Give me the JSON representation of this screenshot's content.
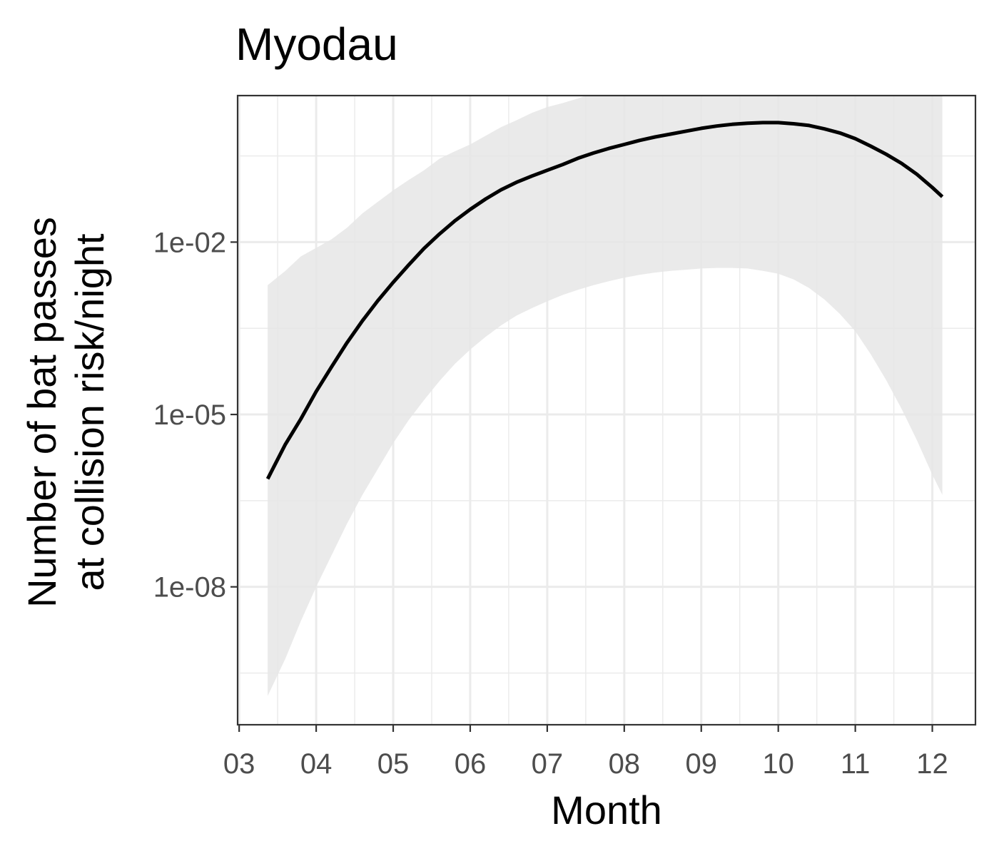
{
  "chart_data": {
    "type": "line",
    "title": "Myodau",
    "xlabel": "Month",
    "ylabel_lines": [
      "Number of bat passes",
      "at collision risk/night"
    ],
    "x_ticks": [
      "03",
      "04",
      "05",
      "06",
      "07",
      "08",
      "09",
      "10",
      "11",
      "12"
    ],
    "y_scale": "log10",
    "y_ticks": [
      {
        "label": "1e-08",
        "value": 1e-08
      },
      {
        "label": "1e-05",
        "value": 1e-05
      },
      {
        "label": "1e-02",
        "value": 0.01
      }
    ],
    "xlim_month": [
      2.98,
      12.56
    ],
    "ylim_log10": [
      -10.4,
      0.55
    ],
    "grid": true,
    "series": [
      {
        "color": "#000000",
        "x_month": [
          3.37,
          3.6,
          3.8,
          4.0,
          4.2,
          4.4,
          4.6,
          4.8,
          5.0,
          5.2,
          5.4,
          5.6,
          5.8,
          6.0,
          6.2,
          6.4,
          6.6,
          6.8,
          7.0,
          7.2,
          7.4,
          7.6,
          7.8,
          8.0,
          8.2,
          8.4,
          8.6,
          8.8,
          9.0,
          9.2,
          9.4,
          9.6,
          9.8,
          10.0,
          10.2,
          10.4,
          10.6,
          10.8,
          11.0,
          11.2,
          11.4,
          11.6,
          11.8,
          12.0,
          12.13
        ],
        "log10_y": [
          -6.12,
          -5.52,
          -5.08,
          -4.6,
          -4.17,
          -3.75,
          -3.37,
          -3.02,
          -2.7,
          -2.4,
          -2.11,
          -1.86,
          -1.63,
          -1.43,
          -1.25,
          -1.09,
          -0.96,
          -0.85,
          -0.75,
          -0.65,
          -0.54,
          -0.45,
          -0.37,
          -0.3,
          -0.23,
          -0.17,
          -0.12,
          -0.07,
          -0.02,
          0.02,
          0.05,
          0.07,
          0.08,
          0.08,
          0.06,
          0.03,
          -0.03,
          -0.1,
          -0.2,
          -0.33,
          -0.47,
          -0.63,
          -0.82,
          -1.05,
          -1.21
        ]
      }
    ],
    "ribbon": {
      "color": "#e6e6e6",
      "x_month": [
        3.37,
        3.6,
        3.8,
        4.0,
        4.2,
        4.4,
        4.6,
        4.8,
        5.0,
        5.2,
        5.4,
        5.6,
        5.8,
        6.0,
        6.2,
        6.4,
        6.6,
        6.8,
        7.0,
        7.2,
        7.4,
        7.6,
        7.8,
        8.0,
        8.2,
        8.4,
        8.6,
        8.8,
        9.0,
        9.2,
        9.4,
        9.6,
        9.8,
        10.0,
        10.2,
        10.4,
        10.6,
        10.8,
        11.0,
        11.2,
        11.4,
        11.6,
        11.8,
        12.0,
        12.13
      ],
      "log10_lower": [
        -9.9,
        -9.25,
        -8.6,
        -8.0,
        -7.45,
        -6.9,
        -6.4,
        -5.95,
        -5.5,
        -5.1,
        -4.75,
        -4.42,
        -4.12,
        -3.87,
        -3.65,
        -3.45,
        -3.28,
        -3.15,
        -3.03,
        -2.92,
        -2.83,
        -2.75,
        -2.68,
        -2.62,
        -2.57,
        -2.53,
        -2.5,
        -2.48,
        -2.46,
        -2.45,
        -2.45,
        -2.46,
        -2.5,
        -2.55,
        -2.65,
        -2.8,
        -3.0,
        -3.25,
        -3.55,
        -3.95,
        -4.4,
        -4.9,
        -5.45,
        -6.05,
        -6.4
      ],
      "log10_upper": [
        -2.75,
        -2.5,
        -2.25,
        -2.1,
        -1.95,
        -1.75,
        -1.5,
        -1.3,
        -1.1,
        -0.92,
        -0.75,
        -0.55,
        -0.42,
        -0.3,
        -0.15,
        0.0,
        0.12,
        0.25,
        0.35,
        0.42,
        0.5,
        0.6,
        0.68,
        0.75,
        0.8,
        0.85,
        0.9,
        0.95,
        0.98,
        1.0,
        1.02,
        1.04,
        1.06,
        1.08,
        1.1,
        1.12,
        1.13,
        1.15,
        1.17,
        1.19,
        1.2,
        1.21,
        1.22,
        1.23,
        1.23
      ]
    }
  }
}
